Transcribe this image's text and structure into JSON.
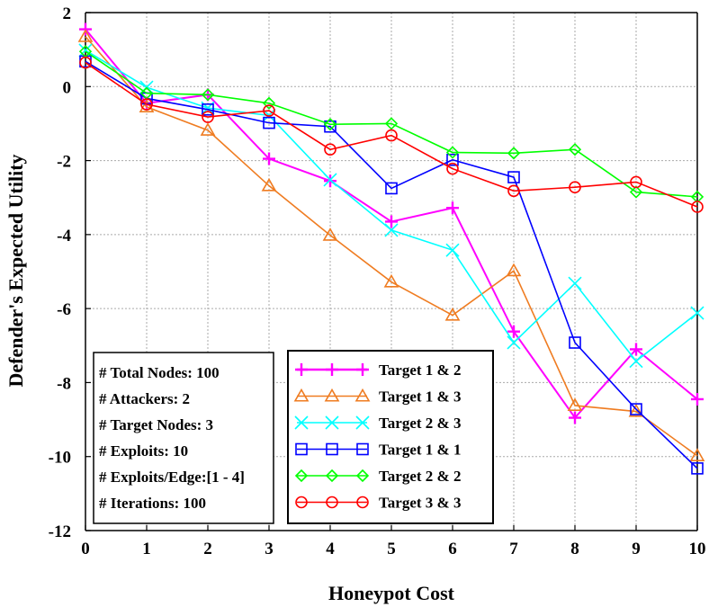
{
  "chart_data": {
    "type": "line",
    "title": "",
    "xlabel": "Honeypot Cost",
    "ylabel": "Defender's Expected Utility",
    "xlim": [
      0,
      10
    ],
    "ylim": [
      -12,
      2
    ],
    "xticks": [
      0,
      1,
      2,
      3,
      4,
      5,
      6,
      7,
      8,
      9,
      10
    ],
    "yticks": [
      2,
      0,
      -2,
      -4,
      -6,
      -8,
      -10,
      -12
    ],
    "grid": true,
    "x": [
      0,
      1,
      2,
      3,
      4,
      5,
      6,
      7,
      8,
      9,
      10
    ],
    "series": [
      {
        "name": "Target 1 & 2",
        "color": "#ff00ff",
        "marker": "plus",
        "values": [
          1.55,
          -0.45,
          -0.22,
          -1.95,
          -2.55,
          -3.65,
          -3.28,
          -6.62,
          -8.95,
          -7.1,
          -8.45
        ]
      },
      {
        "name": "Target 1 & 3",
        "color": "#ef7c21",
        "marker": "triangle",
        "values": [
          1.35,
          -0.55,
          -1.18,
          -2.68,
          -4.02,
          -5.28,
          -6.18,
          -4.98,
          -8.62,
          -8.78,
          -9.98
        ]
      },
      {
        "name": "Target 2 & 3",
        "color": "#00ffff",
        "marker": "x",
        "values": [
          0.98,
          -0.02,
          -0.58,
          -0.78,
          -2.52,
          -3.88,
          -4.42,
          -6.92,
          -5.32,
          -7.42,
          -6.12
        ]
      },
      {
        "name": "Target 1 & 1",
        "color": "#0000ff",
        "marker": "square",
        "values": [
          0.68,
          -0.32,
          -0.62,
          -0.98,
          -1.08,
          -2.75,
          -1.98,
          -2.45,
          -6.92,
          -8.72,
          -10.32
        ]
      },
      {
        "name": "Target 2 & 2",
        "color": "#00ff00",
        "marker": "diamond",
        "values": [
          0.95,
          -0.18,
          -0.22,
          -0.45,
          -1.02,
          -1.0,
          -1.78,
          -1.8,
          -1.7,
          -2.85,
          -2.98
        ]
      },
      {
        "name": "Target 3 & 3",
        "color": "#ff0000",
        "marker": "circle",
        "values": [
          0.65,
          -0.48,
          -0.82,
          -0.65,
          -1.7,
          -1.32,
          -2.22,
          -2.82,
          -2.72,
          -2.58,
          -3.25
        ]
      }
    ],
    "legend_position": "bottom-center",
    "annotation_lines": [
      "# Total Nodes: 100",
      "# Attackers: 2",
      "# Target Nodes: 3",
      "# Exploits: 10",
      "# Exploits/Edge:[1 - 4]",
      "# Iterations: 100"
    ]
  }
}
